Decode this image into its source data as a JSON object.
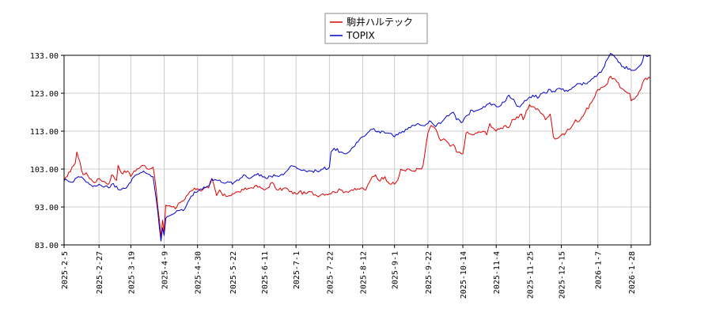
{
  "chart_data": {
    "type": "line",
    "title": "",
    "xlabel": "",
    "ylabel": "",
    "ylim": [
      83.0,
      133.0
    ],
    "yticks": [
      "83.00",
      "93.00",
      "103.00",
      "113.00",
      "123.00",
      "133.00"
    ],
    "xlim": [
      "2025-02-05",
      "2026-02-09"
    ],
    "xticks": [
      "2025-2-5",
      "2025-2-27",
      "2025-3-19",
      "2025-4-9",
      "2025-4-30",
      "2025-5-22",
      "2025-6-11",
      "2025-7-1",
      "2025-7-22",
      "2025-8-12",
      "2025-9-1",
      "2025-9-22",
      "2025-10-14",
      "2025-11-4",
      "2025-11-25",
      "2025-12-15",
      "2026-1-7",
      "2026-1-28"
    ],
    "grid": true,
    "legend": "top-center",
    "series": [
      {
        "name": "駒井ハルテック",
        "color": "#dd0000",
        "points": [
          [
            "2025-02-05",
            100.0
          ],
          [
            "2025-02-07",
            101.0
          ],
          [
            "2025-02-10",
            103.5
          ],
          [
            "2025-02-12",
            104.5
          ],
          [
            "2025-02-13",
            107.5
          ],
          [
            "2025-02-14",
            106.0
          ],
          [
            "2025-02-17",
            101.5
          ],
          [
            "2025-02-19",
            102.0
          ],
          [
            "2025-02-21",
            100.5
          ],
          [
            "2025-02-25",
            99.5
          ],
          [
            "2025-02-27",
            100.5
          ],
          [
            "2025-03-03",
            99.5
          ],
          [
            "2025-03-05",
            99.0
          ],
          [
            "2025-03-07",
            101.5
          ],
          [
            "2025-03-10",
            100.0
          ],
          [
            "2025-03-11",
            104.0
          ],
          [
            "2025-03-13",
            102.0
          ],
          [
            "2025-03-17",
            102.5
          ],
          [
            "2025-03-19",
            101.0
          ],
          [
            "2025-03-21",
            102.5
          ],
          [
            "2025-03-25",
            103.5
          ],
          [
            "2025-03-27",
            104.0
          ],
          [
            "2025-03-31",
            103.0
          ],
          [
            "2025-04-02",
            103.5
          ],
          [
            "2025-04-03",
            101.0
          ],
          [
            "2025-04-04",
            97.5
          ],
          [
            "2025-04-07",
            85.0
          ],
          [
            "2025-04-08",
            89.5
          ],
          [
            "2025-04-09",
            86.5
          ],
          [
            "2025-04-10",
            93.5
          ],
          [
            "2025-04-14",
            93.0
          ],
          [
            "2025-04-16",
            92.5
          ],
          [
            "2025-04-18",
            94.0
          ],
          [
            "2025-04-22",
            95.0
          ],
          [
            "2025-04-25",
            97.0
          ],
          [
            "2025-04-28",
            98.0
          ],
          [
            "2025-05-01",
            97.5
          ],
          [
            "2025-05-07",
            98.0
          ],
          [
            "2025-05-09",
            100.5
          ],
          [
            "2025-05-12",
            96.0
          ],
          [
            "2025-05-14",
            97.5
          ],
          [
            "2025-05-16",
            96.0
          ],
          [
            "2025-05-20",
            96.0
          ],
          [
            "2025-05-22",
            96.5
          ],
          [
            "2025-05-26",
            97.0
          ],
          [
            "2025-05-29",
            97.5
          ],
          [
            "2025-06-02",
            98.0
          ],
          [
            "2025-06-05",
            98.5
          ],
          [
            "2025-06-09",
            98.0
          ],
          [
            "2025-06-11",
            97.5
          ],
          [
            "2025-06-13",
            98.0
          ],
          [
            "2025-06-16",
            99.5
          ],
          [
            "2025-06-18",
            98.0
          ],
          [
            "2025-06-20",
            97.5
          ],
          [
            "2025-06-25",
            98.0
          ],
          [
            "2025-06-27",
            97.0
          ],
          [
            "2025-07-01",
            96.5
          ],
          [
            "2025-07-03",
            97.0
          ],
          [
            "2025-07-07",
            96.5
          ],
          [
            "2025-07-10",
            97.0
          ],
          [
            "2025-07-14",
            96.0
          ],
          [
            "2025-07-18",
            96.5
          ],
          [
            "2025-07-22",
            96.5
          ],
          [
            "2025-07-25",
            97.0
          ],
          [
            "2025-07-29",
            97.5
          ],
          [
            "2025-08-01",
            97.0
          ],
          [
            "2025-08-05",
            97.5
          ],
          [
            "2025-08-08",
            97.5
          ],
          [
            "2025-08-12",
            98.0
          ],
          [
            "2025-08-14",
            97.5
          ],
          [
            "2025-08-18",
            101.0
          ],
          [
            "2025-08-20",
            101.5
          ],
          [
            "2025-08-22",
            100.0
          ],
          [
            "2025-08-26",
            101.0
          ],
          [
            "2025-08-28",
            99.5
          ],
          [
            "2025-09-01",
            99.0
          ],
          [
            "2025-09-03",
            100.0
          ],
          [
            "2025-09-05",
            103.0
          ],
          [
            "2025-09-08",
            102.5
          ],
          [
            "2025-09-10",
            103.0
          ],
          [
            "2025-09-12",
            102.5
          ],
          [
            "2025-09-16",
            103.0
          ],
          [
            "2025-09-18",
            103.0
          ],
          [
            "2025-09-19",
            104.0
          ],
          [
            "2025-09-22",
            112.5
          ],
          [
            "2025-09-24",
            114.5
          ],
          [
            "2025-09-26",
            114.0
          ],
          [
            "2025-09-30",
            110.5
          ],
          [
            "2025-10-02",
            111.0
          ],
          [
            "2025-10-06",
            109.0
          ],
          [
            "2025-10-08",
            109.5
          ],
          [
            "2025-10-10",
            107.5
          ],
          [
            "2025-10-14",
            107.0
          ],
          [
            "2025-10-16",
            112.5
          ],
          [
            "2025-10-20",
            112.0
          ],
          [
            "2025-10-23",
            112.5
          ],
          [
            "2025-10-27",
            113.0
          ],
          [
            "2025-10-29",
            112.0
          ],
          [
            "2025-10-31",
            115.0
          ],
          [
            "2025-11-04",
            113.0
          ],
          [
            "2025-11-06",
            113.5
          ],
          [
            "2025-11-10",
            114.5
          ],
          [
            "2025-11-12",
            114.0
          ],
          [
            "2025-11-14",
            116.0
          ],
          [
            "2025-11-18",
            116.5
          ],
          [
            "2025-11-20",
            117.5
          ],
          [
            "2025-11-21",
            116.0
          ],
          [
            "2025-11-25",
            120.0
          ],
          [
            "2025-11-27",
            119.5
          ],
          [
            "2025-12-01",
            118.5
          ],
          [
            "2025-12-03",
            117.5
          ],
          [
            "2025-12-05",
            116.0
          ],
          [
            "2025-12-08",
            117.5
          ],
          [
            "2025-12-10",
            111.5
          ],
          [
            "2025-12-12",
            111.0
          ],
          [
            "2025-12-15",
            112.0
          ],
          [
            "2025-12-17",
            112.0
          ],
          [
            "2025-12-19",
            113.5
          ],
          [
            "2025-12-22",
            114.5
          ],
          [
            "2025-12-24",
            116.0
          ],
          [
            "2025-12-26",
            115.5
          ],
          [
            "2025-12-30",
            118.0
          ],
          [
            "2026-01-05",
            122.0
          ],
          [
            "2026-01-07",
            124.0
          ],
          [
            "2026-01-09",
            124.5
          ],
          [
            "2026-01-13",
            125.5
          ],
          [
            "2026-01-15",
            127.5
          ],
          [
            "2026-01-19",
            126.0
          ],
          [
            "2026-01-21",
            124.5
          ],
          [
            "2026-01-23",
            124.0
          ],
          [
            "2026-01-27",
            123.0
          ],
          [
            "2026-01-28",
            121.0
          ],
          [
            "2026-01-30",
            121.5
          ],
          [
            "2026-02-03",
            124.0
          ],
          [
            "2026-02-05",
            126.5
          ],
          [
            "2026-02-09",
            127.0
          ]
        ]
      },
      {
        "name": "TOPIX",
        "color": "#0000cc",
        "points": [
          [
            "2025-02-05",
            100.0
          ],
          [
            "2025-02-07",
            100.0
          ],
          [
            "2025-02-10",
            99.5
          ],
          [
            "2025-02-12",
            100.5
          ],
          [
            "2025-02-14",
            101.0
          ],
          [
            "2025-02-17",
            100.5
          ],
          [
            "2025-02-19",
            99.5
          ],
          [
            "2025-02-21",
            99.0
          ],
          [
            "2025-02-25",
            98.5
          ],
          [
            "2025-02-27",
            99.0
          ],
          [
            "2025-03-03",
            98.5
          ],
          [
            "2025-03-05",
            98.0
          ],
          [
            "2025-03-07",
            99.0
          ],
          [
            "2025-03-10",
            98.5
          ],
          [
            "2025-03-12",
            97.5
          ],
          [
            "2025-03-14",
            98.0
          ],
          [
            "2025-03-17",
            98.5
          ],
          [
            "2025-03-19",
            99.5
          ],
          [
            "2025-03-21",
            101.0
          ],
          [
            "2025-03-25",
            102.0
          ],
          [
            "2025-03-27",
            102.5
          ],
          [
            "2025-03-31",
            101.5
          ],
          [
            "2025-04-02",
            101.0
          ],
          [
            "2025-04-03",
            98.0
          ],
          [
            "2025-04-04",
            95.0
          ],
          [
            "2025-04-07",
            84.0
          ],
          [
            "2025-04-08",
            87.5
          ],
          [
            "2025-04-09",
            85.5
          ],
          [
            "2025-04-10",
            90.0
          ],
          [
            "2025-04-14",
            91.0
          ],
          [
            "2025-04-16",
            91.5
          ],
          [
            "2025-04-18",
            92.0
          ],
          [
            "2025-04-22",
            92.5
          ],
          [
            "2025-04-25",
            95.0
          ],
          [
            "2025-04-28",
            97.0
          ],
          [
            "2025-05-01",
            97.5
          ],
          [
            "2025-05-07",
            98.5
          ],
          [
            "2025-05-09",
            100.5
          ],
          [
            "2025-05-13",
            100.0
          ],
          [
            "2025-05-15",
            99.5
          ],
          [
            "2025-05-20",
            99.5
          ],
          [
            "2025-05-22",
            99.0
          ],
          [
            "2025-05-26",
            100.0
          ],
          [
            "2025-05-29",
            101.5
          ],
          [
            "2025-06-02",
            100.5
          ],
          [
            "2025-06-05",
            101.5
          ],
          [
            "2025-06-09",
            101.5
          ],
          [
            "2025-06-11",
            101.0
          ],
          [
            "2025-06-13",
            100.5
          ],
          [
            "2025-06-17",
            101.5
          ],
          [
            "2025-06-20",
            101.0
          ],
          [
            "2025-06-24",
            102.0
          ],
          [
            "2025-06-27",
            103.5
          ],
          [
            "2025-07-01",
            103.5
          ],
          [
            "2025-07-03",
            103.0
          ],
          [
            "2025-07-07",
            102.5
          ],
          [
            "2025-07-10",
            102.5
          ],
          [
            "2025-07-14",
            102.5
          ],
          [
            "2025-07-18",
            103.0
          ],
          [
            "2025-07-22",
            103.5
          ],
          [
            "2025-07-23",
            107.5
          ],
          [
            "2025-07-25",
            108.5
          ],
          [
            "2025-07-29",
            107.5
          ],
          [
            "2025-08-01",
            107.0
          ],
          [
            "2025-08-05",
            108.5
          ],
          [
            "2025-08-08",
            110.0
          ],
          [
            "2025-08-12",
            111.5
          ],
          [
            "2025-08-14",
            112.0
          ],
          [
            "2025-08-18",
            113.5
          ],
          [
            "2025-08-20",
            113.0
          ],
          [
            "2025-08-22",
            113.0
          ],
          [
            "2025-08-26",
            112.5
          ],
          [
            "2025-08-28",
            112.5
          ],
          [
            "2025-09-01",
            111.5
          ],
          [
            "2025-09-03",
            112.0
          ],
          [
            "2025-09-05",
            112.5
          ],
          [
            "2025-09-08",
            113.5
          ],
          [
            "2025-09-10",
            114.0
          ],
          [
            "2025-09-12",
            114.5
          ],
          [
            "2025-09-16",
            115.0
          ],
          [
            "2025-09-18",
            114.5
          ],
          [
            "2025-09-22",
            115.0
          ],
          [
            "2025-09-24",
            115.5
          ],
          [
            "2025-09-26",
            114.5
          ],
          [
            "2025-09-30",
            115.0
          ],
          [
            "2025-10-02",
            116.0
          ],
          [
            "2025-10-06",
            117.5
          ],
          [
            "2025-10-08",
            118.0
          ],
          [
            "2025-10-10",
            116.0
          ],
          [
            "2025-10-14",
            115.5
          ],
          [
            "2025-10-16",
            117.0
          ],
          [
            "2025-10-20",
            118.5
          ],
          [
            "2025-10-23",
            118.5
          ],
          [
            "2025-10-27",
            119.5
          ],
          [
            "2025-10-29",
            120.0
          ],
          [
            "2025-10-31",
            120.5
          ],
          [
            "2025-11-04",
            119.5
          ],
          [
            "2025-11-06",
            119.5
          ],
          [
            "2025-11-10",
            121.0
          ],
          [
            "2025-11-12",
            122.5
          ],
          [
            "2025-11-14",
            121.5
          ],
          [
            "2025-11-18",
            119.5
          ],
          [
            "2025-11-20",
            120.0
          ],
          [
            "2025-11-25",
            122.0
          ],
          [
            "2025-11-27",
            122.5
          ],
          [
            "2025-12-01",
            122.0
          ],
          [
            "2025-12-03",
            123.0
          ],
          [
            "2025-12-05",
            123.0
          ],
          [
            "2025-12-08",
            124.0
          ],
          [
            "2025-12-10",
            123.5
          ],
          [
            "2025-12-12",
            124.0
          ],
          [
            "2025-12-15",
            124.0
          ],
          [
            "2025-12-17",
            123.5
          ],
          [
            "2025-12-19",
            123.5
          ],
          [
            "2025-12-22",
            124.5
          ],
          [
            "2025-12-24",
            125.0
          ],
          [
            "2025-12-26",
            125.5
          ],
          [
            "2025-12-30",
            125.5
          ],
          [
            "2026-01-05",
            127.5
          ],
          [
            "2026-01-07",
            128.0
          ],
          [
            "2026-01-09",
            128.5
          ],
          [
            "2026-01-13",
            132.0
          ],
          [
            "2026-01-15",
            133.5
          ],
          [
            "2026-01-19",
            132.0
          ],
          [
            "2026-01-21",
            131.0
          ],
          [
            "2026-01-23",
            130.0
          ],
          [
            "2026-01-27",
            129.5
          ],
          [
            "2026-01-28",
            129.0
          ],
          [
            "2026-01-30",
            129.0
          ],
          [
            "2026-02-03",
            130.5
          ],
          [
            "2026-02-05",
            133.0
          ],
          [
            "2026-02-09",
            133.0
          ]
        ]
      }
    ]
  }
}
